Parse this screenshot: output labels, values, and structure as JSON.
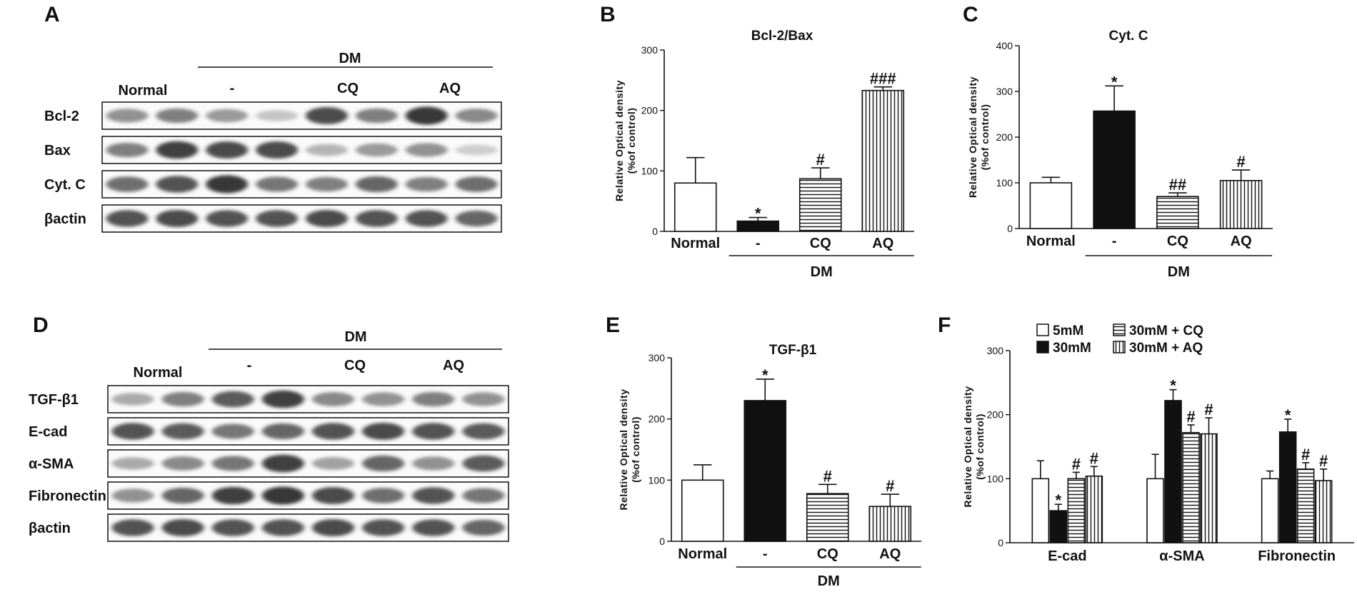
{
  "colors": {
    "ink": "#111111",
    "background": "#ffffff",
    "blot_band": "#2a2a2a"
  },
  "blots": [
    {
      "panel": "A",
      "group_label": "DM",
      "lane_labels": [
        "Normal",
        "-",
        "CQ",
        "AQ"
      ],
      "rows": [
        {
          "label": "Bcl-2",
          "band_levels": [
            0.45,
            0.55,
            0.4,
            0.15,
            0.85,
            0.55,
            0.95,
            0.5
          ]
        },
        {
          "label": "Bax",
          "band_levels": [
            0.55,
            0.9,
            0.85,
            0.85,
            0.25,
            0.4,
            0.45,
            0.1
          ]
        },
        {
          "label": "Cyt. C",
          "band_levels": [
            0.65,
            0.8,
            0.95,
            0.6,
            0.55,
            0.7,
            0.55,
            0.65
          ]
        },
        {
          "label": "βactin",
          "band_levels": [
            0.8,
            0.85,
            0.8,
            0.8,
            0.85,
            0.8,
            0.8,
            0.7
          ]
        }
      ]
    },
    {
      "panel": "D",
      "group_label": "DM",
      "lane_labels": [
        "Normal",
        "-",
        "CQ",
        "AQ"
      ],
      "rows": [
        {
          "label": "TGF-β1",
          "band_levels": [
            0.3,
            0.55,
            0.75,
            0.9,
            0.5,
            0.45,
            0.55,
            0.45
          ]
        },
        {
          "label": "E-cad",
          "band_levels": [
            0.8,
            0.75,
            0.6,
            0.7,
            0.8,
            0.85,
            0.8,
            0.75
          ]
        },
        {
          "label": "α-SMA",
          "band_levels": [
            0.3,
            0.5,
            0.6,
            0.9,
            0.35,
            0.7,
            0.45,
            0.75
          ]
        },
        {
          "label": "Fibronectin",
          "band_levels": [
            0.45,
            0.7,
            0.9,
            0.95,
            0.85,
            0.65,
            0.8,
            0.6
          ]
        },
        {
          "label": "βactin",
          "band_levels": [
            0.8,
            0.85,
            0.8,
            0.8,
            0.85,
            0.8,
            0.8,
            0.7
          ]
        }
      ]
    }
  ],
  "chart_data": [
    {
      "panel": "B",
      "type": "bar",
      "title": "Bcl-2/Bax",
      "ylabel": "Relative Optical density\n(%of control)",
      "xlabel": "",
      "ylim": [
        0,
        300
      ],
      "yticks": [
        0,
        100,
        200,
        300
      ],
      "categories": [
        "Normal",
        "-",
        "CQ",
        "AQ"
      ],
      "group_label": "DM",
      "values": [
        80,
        17,
        87,
        233
      ],
      "errors": [
        42,
        6,
        18,
        6
      ],
      "fills": [
        "open",
        "solid",
        "hlines",
        "vlines"
      ],
      "annotations": [
        "",
        "*",
        "#",
        "###"
      ]
    },
    {
      "panel": "C",
      "type": "bar",
      "title": "Cyt. C",
      "ylabel": "Relative Optical density\n(%of control)",
      "xlabel": "",
      "ylim": [
        0,
        400
      ],
      "yticks": [
        0,
        100,
        200,
        300,
        400
      ],
      "categories": [
        "Normal",
        "-",
        "CQ",
        "AQ"
      ],
      "group_label": "DM",
      "values": [
        100,
        257,
        70,
        105
      ],
      "errors": [
        12,
        55,
        8,
        23
      ],
      "fills": [
        "open",
        "solid",
        "hlines",
        "vlines"
      ],
      "annotations": [
        "",
        "*",
        "##",
        "#"
      ]
    },
    {
      "panel": "E",
      "type": "bar",
      "title": "TGF-β1",
      "ylabel": "Relative Optical density\n(%of control)",
      "xlabel": "",
      "ylim": [
        0,
        300
      ],
      "yticks": [
        0,
        100,
        200,
        300
      ],
      "categories": [
        "Normal",
        "-",
        "CQ",
        "AQ"
      ],
      "group_label": "DM",
      "values": [
        100,
        230,
        78,
        57
      ],
      "errors": [
        25,
        35,
        15,
        20
      ],
      "fills": [
        "open",
        "solid",
        "hlines",
        "vlines"
      ],
      "annotations": [
        "",
        "*",
        "#",
        "#"
      ]
    },
    {
      "panel": "F",
      "type": "bar",
      "title": "",
      "ylabel": "Relative Optical density\n(%of control)",
      "xlabel": "",
      "ylim": [
        0,
        300
      ],
      "yticks": [
        0,
        100,
        200,
        300
      ],
      "categories": [
        "E-cad",
        "α-SMA",
        "Fibronectin"
      ],
      "legend_position": "top",
      "series": [
        {
          "name": "5mM",
          "fill": "open",
          "values": [
            100,
            100,
            100
          ],
          "errors": [
            28,
            38,
            12
          ],
          "annotations": [
            "",
            "",
            ""
          ]
        },
        {
          "name": "30mM",
          "fill": "solid",
          "values": [
            50,
            222,
            173
          ],
          "errors": [
            10,
            17,
            20
          ],
          "annotations": [
            "*",
            "*",
            "*"
          ]
        },
        {
          "name": "30mM + CQ",
          "fill": "hlines",
          "values": [
            100,
            172,
            115
          ],
          "errors": [
            10,
            12,
            10
          ],
          "annotations": [
            "#",
            "#",
            "#"
          ]
        },
        {
          "name": "30mM + AQ",
          "fill": "vlines",
          "values": [
            104,
            170,
            97
          ],
          "errors": [
            15,
            25,
            18
          ],
          "annotations": [
            "#",
            "#",
            "#"
          ]
        }
      ]
    }
  ]
}
